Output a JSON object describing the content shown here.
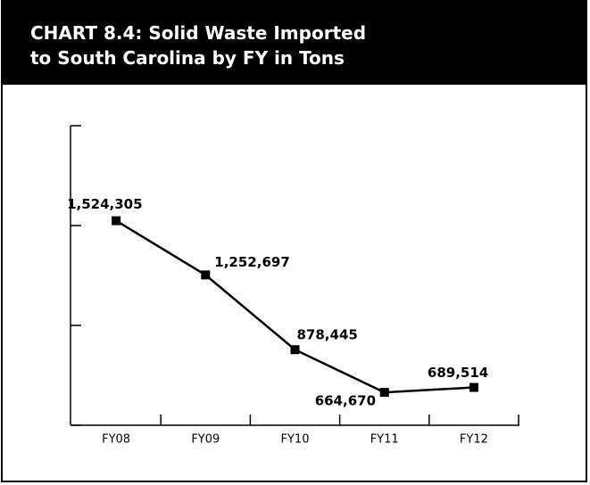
{
  "chart_data": {
    "type": "line",
    "title": [
      "CHART 8.4: Solid Waste Imported",
      "to South Carolina by FY in Tons"
    ],
    "categories": [
      "FY08",
      "FY09",
      "FY10",
      "FY11",
      "FY12"
    ],
    "values": [
      1524305,
      1252697,
      878445,
      664670,
      689514
    ],
    "value_labels": [
      "1,524,305",
      "1,252,697",
      "878,445",
      "664,670",
      "689,514"
    ],
    "color": "#000000",
    "ylim": [
      500000,
      2000000
    ],
    "yticks": [
      500000,
      1000000,
      1500000,
      2000000
    ]
  }
}
